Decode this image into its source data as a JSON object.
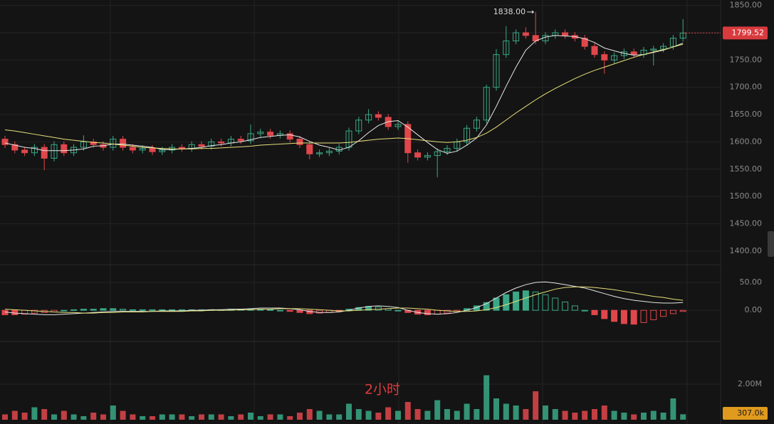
{
  "chart_data": [
    {
      "type": "candlestick",
      "open": [
        1605,
        1595,
        1585,
        1580,
        1590,
        1570,
        1595,
        1580,
        1590,
        1600,
        1595,
        1590,
        1605,
        1590,
        1585,
        1588,
        1582,
        1585,
        1590,
        1588,
        1595,
        1592,
        1600,
        1598,
        1605,
        1602,
        1615,
        1618,
        1612,
        1615,
        1605,
        1595,
        1578,
        1580,
        1583,
        1590,
        1620,
        1640,
        1650,
        1645,
        1628,
        1632,
        1580,
        1572,
        1575,
        1582,
        1588,
        1600,
        1625,
        1640,
        1700,
        1760,
        1785,
        1800,
        1795,
        1785,
        1795,
        1800,
        1795,
        1790,
        1775,
        1760,
        1750,
        1758,
        1765,
        1760,
        1768,
        1770,
        1775,
        1790
      ],
      "high": [
        1611,
        1601,
        1591,
        1596,
        1596,
        1601,
        1601,
        1596,
        1612,
        1606,
        1601,
        1611,
        1611,
        1596,
        1594,
        1594,
        1591,
        1596,
        1596,
        1601,
        1601,
        1606,
        1606,
        1611,
        1611,
        1632,
        1624,
        1624,
        1621,
        1621,
        1611,
        1601,
        1586,
        1589,
        1596,
        1626,
        1646,
        1660,
        1656,
        1651,
        1638,
        1638,
        1586,
        1581,
        1588,
        1594,
        1606,
        1631,
        1646,
        1705,
        1770,
        1812,
        1806,
        1810,
        1838,
        1801,
        1806,
        1806,
        1801,
        1796,
        1781,
        1766,
        1764,
        1771,
        1771,
        1774,
        1776,
        1781,
        1796,
        1825
      ],
      "low": [
        1589,
        1579,
        1574,
        1574,
        1548,
        1564,
        1574,
        1574,
        1584,
        1589,
        1584,
        1584,
        1584,
        1579,
        1579,
        1576,
        1576,
        1579,
        1582,
        1582,
        1586,
        1586,
        1592,
        1592,
        1596,
        1596,
        1609,
        1606,
        1606,
        1599,
        1589,
        1568,
        1572,
        1574,
        1577,
        1584,
        1614,
        1634,
        1639,
        1622,
        1622,
        1562,
        1566,
        1566,
        1535,
        1576,
        1582,
        1594,
        1619,
        1634,
        1694,
        1754,
        1779,
        1789,
        1779,
        1779,
        1789,
        1789,
        1784,
        1769,
        1754,
        1725,
        1744,
        1752,
        1754,
        1754,
        1740,
        1764,
        1769,
        1784
      ],
      "close": [
        1595,
        1585,
        1580,
        1590,
        1570,
        1595,
        1580,
        1590,
        1600,
        1595,
        1590,
        1605,
        1590,
        1585,
        1588,
        1582,
        1585,
        1590,
        1588,
        1595,
        1592,
        1600,
        1598,
        1605,
        1602,
        1615,
        1618,
        1612,
        1615,
        1605,
        1595,
        1578,
        1580,
        1583,
        1590,
        1620,
        1640,
        1650,
        1645,
        1628,
        1632,
        1580,
        1572,
        1575,
        1582,
        1588,
        1600,
        1625,
        1640,
        1700,
        1760,
        1785,
        1800,
        1795,
        1785,
        1795,
        1800,
        1795,
        1790,
        1775,
        1760,
        1750,
        1758,
        1765,
        1760,
        1768,
        1770,
        1775,
        1790,
        1799.52
      ],
      "high_labels": [
        null,
        null,
        null,
        null,
        null,
        null,
        null,
        null,
        null,
        null,
        null,
        null,
        null,
        null,
        null,
        null,
        null,
        null,
        null,
        null,
        null,
        null,
        null,
        null,
        null,
        null,
        null,
        null,
        null,
        null,
        null,
        null,
        null,
        null,
        null,
        null,
        null,
        null,
        null,
        null,
        null,
        null,
        null,
        null,
        null,
        null,
        null,
        null,
        null,
        null,
        null,
        null,
        null,
        null,
        "1838.00",
        null,
        null,
        null,
        null,
        null,
        null,
        null,
        null,
        null,
        null,
        null,
        null,
        null,
        null,
        null
      ],
      "close_labels": [
        null,
        null,
        null,
        null,
        null,
        null,
        null,
        null,
        null,
        null,
        null,
        null,
        null,
        null,
        null,
        null,
        null,
        null,
        null,
        null,
        null,
        null,
        null,
        null,
        null,
        null,
        null,
        null,
        null,
        null,
        null,
        null,
        null,
        null,
        null,
        null,
        null,
        null,
        null,
        null,
        null,
        null,
        null,
        null,
        null,
        null,
        null,
        null,
        null,
        null,
        null,
        null,
        null,
        null,
        null,
        null,
        null,
        null,
        null,
        null,
        null,
        null,
        null,
        null,
        null,
        null,
        null,
        null,
        null,
        "1799.52"
      ],
      "up_color": "#3aa886",
      "down_color": "#e0474b",
      "series": [
        {
          "color": "#e6e6e6",
          "values": [
            1598,
            1594,
            1590,
            1588,
            1584,
            1584,
            1584,
            1585,
            1587,
            1592,
            1593,
            1596,
            1596,
            1594,
            1592,
            1590,
            1586,
            1586,
            1587,
            1588,
            1590,
            1593,
            1595,
            1598,
            1600,
            1604,
            1608,
            1610,
            1612,
            1613,
            1609,
            1601,
            1594,
            1590,
            1585,
            1590,
            1602,
            1617,
            1630,
            1637,
            1639,
            1627,
            1613,
            1599,
            1586,
            1579,
            1583,
            1594,
            1607,
            1631,
            1665,
            1702,
            1737,
            1768,
            1785,
            1792,
            1795,
            1794,
            1793,
            1789,
            1782,
            1772,
            1767,
            1762,
            1759,
            1760,
            1764,
            1768,
            1774,
            1781
          ]
        },
        {
          "color": "#e8e07a",
          "values": [
            1622,
            1620,
            1617,
            1614,
            1611,
            1608,
            1605,
            1603,
            1601,
            1599,
            1598,
            1596,
            1594,
            1592,
            1590,
            1589,
            1588,
            1587,
            1587,
            1587,
            1588,
            1588,
            1589,
            1590,
            1591,
            1592,
            1594,
            1595,
            1596,
            1597,
            1598,
            1598,
            1598,
            1598,
            1598,
            1599,
            1601,
            1603,
            1605,
            1606,
            1607,
            1606,
            1604,
            1602,
            1600,
            1599,
            1600,
            1603,
            1608,
            1616,
            1627,
            1640,
            1653,
            1665,
            1677,
            1688,
            1698,
            1707,
            1716,
            1724,
            1731,
            1737,
            1743,
            1749,
            1755,
            1760,
            1765,
            1769,
            1774,
            1779
          ]
        }
      ],
      "ylim": [
        1375,
        1860
      ],
      "yticks": [
        {
          "value": 1850,
          "label": "1850.00"
        },
        {
          "value": 1800,
          "label": "1800.00"
        },
        {
          "value": 1750,
          "label": "1750.00"
        },
        {
          "value": 1700,
          "label": "1700.00"
        },
        {
          "value": 1650,
          "label": "1650.00"
        },
        {
          "value": 1600,
          "label": "1600.00"
        },
        {
          "value": 1550,
          "label": "1550.00"
        },
        {
          "value": 1500,
          "label": "1500.00"
        },
        {
          "value": 1450,
          "label": "1450.00"
        },
        {
          "value": 1400,
          "label": "1400.00"
        }
      ],
      "grid": true
    },
    {
      "type": "macd",
      "histogram": [
        -8,
        -8,
        -7,
        -5,
        -4,
        -3,
        0,
        1,
        2,
        2,
        3,
        3,
        2,
        1,
        1,
        1,
        1,
        1,
        1,
        1,
        1,
        1,
        1,
        2,
        2,
        2,
        2,
        1,
        0,
        -2,
        -4,
        -6,
        -5,
        -4,
        -2,
        2,
        5,
        7,
        6,
        3,
        0,
        -4,
        -7,
        -8,
        -7,
        -5,
        -2,
        3,
        8,
        14,
        22,
        28,
        33,
        35,
        33,
        28,
        22,
        15,
        8,
        0,
        -8,
        -15,
        -20,
        -24,
        -25,
        -22,
        -17,
        -11,
        -6,
        -2
      ],
      "series": [
        {
          "color": "#e6e6e6",
          "values": [
            -3,
            -5,
            -6,
            -7,
            -8,
            -8,
            -7,
            -6,
            -5,
            -4,
            -3,
            -2,
            -2,
            -2,
            -2,
            -2,
            -1,
            -1,
            -1,
            0,
            0,
            1,
            1,
            2,
            2,
            3,
            4,
            4,
            4,
            3,
            1,
            -2,
            -4,
            -4,
            -3,
            0,
            4,
            7,
            8,
            7,
            5,
            0,
            -4,
            -6,
            -7,
            -6,
            -4,
            0,
            5,
            12,
            22,
            32,
            40,
            46,
            50,
            51,
            49,
            46,
            43,
            40,
            35,
            30,
            25,
            21,
            18,
            16,
            14,
            13,
            13,
            14
          ]
        },
        {
          "color": "#e8e07a",
          "values": [
            2,
            1,
            0,
            -1,
            -2,
            -3,
            -4,
            -4,
            -5,
            -5,
            -4,
            -4,
            -3,
            -3,
            -3,
            -2,
            -2,
            -2,
            -2,
            -1,
            -1,
            0,
            0,
            0,
            1,
            1,
            2,
            2,
            3,
            3,
            3,
            2,
            1,
            0,
            -1,
            -1,
            0,
            1,
            2,
            3,
            4,
            4,
            3,
            2,
            0,
            -1,
            -2,
            -2,
            -1,
            1,
            5,
            10,
            16,
            22,
            28,
            33,
            38,
            41,
            42,
            42,
            41,
            39,
            37,
            34,
            31,
            28,
            25,
            23,
            20,
            18
          ]
        }
      ],
      "up_color": "#3aa886",
      "down_color": "#e0474b",
      "ylim": [
        -56,
        82
      ],
      "yticks": [
        {
          "value": 50,
          "label": "50.00"
        },
        {
          "value": 0,
          "label": "0.00"
        }
      ]
    },
    {
      "type": "volume",
      "values": [
        300000,
        500000,
        400000,
        700000,
        600000,
        300000,
        500000,
        300000,
        200000,
        400000,
        300000,
        800000,
        500000,
        300000,
        200000,
        200000,
        300000,
        300000,
        300000,
        200000,
        300000,
        300000,
        300000,
        200000,
        300000,
        400000,
        200000,
        300000,
        300000,
        200000,
        400000,
        600000,
        500000,
        300000,
        300000,
        900000,
        600000,
        500000,
        400000,
        700000,
        500000,
        1000000,
        600000,
        500000,
        1100000,
        600000,
        500000,
        900000,
        600000,
        2500000,
        1200000,
        900000,
        800000,
        600000,
        1600000,
        800000,
        600000,
        500000,
        400000,
        500000,
        600000,
        800000,
        500000,
        400000,
        300000,
        400000,
        500000,
        400000,
        1200000,
        307000
      ],
      "value_labels": [
        null,
        null,
        null,
        null,
        null,
        null,
        null,
        null,
        null,
        null,
        null,
        null,
        null,
        null,
        null,
        null,
        null,
        null,
        null,
        null,
        null,
        null,
        null,
        null,
        null,
        null,
        null,
        null,
        null,
        null,
        null,
        null,
        null,
        null,
        null,
        null,
        null,
        null,
        null,
        null,
        null,
        null,
        null,
        null,
        null,
        null,
        null,
        null,
        null,
        null,
        null,
        null,
        null,
        null,
        null,
        null,
        null,
        null,
        null,
        null,
        null,
        null,
        null,
        null,
        null,
        null,
        null,
        null,
        null,
        "307.0k"
      ],
      "annotation": "2小时",
      "ylim": [
        0,
        4400000
      ],
      "yticks": [
        {
          "value": 2000000,
          "label": "2.00M"
        }
      ]
    }
  ]
}
